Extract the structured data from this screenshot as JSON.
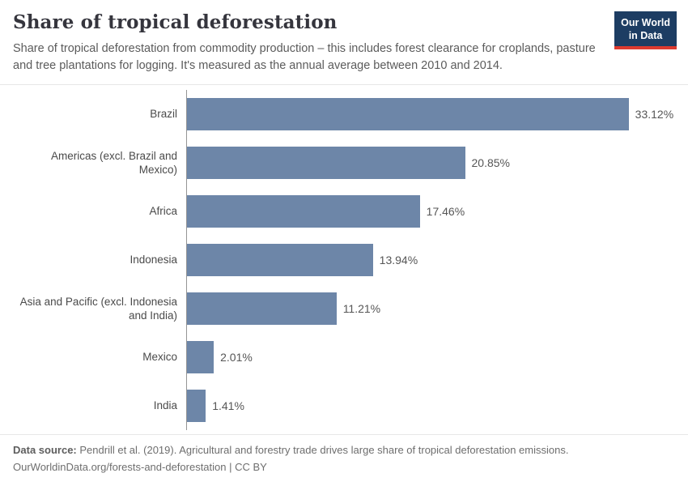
{
  "header": {
    "title": "Share of tropical deforestation",
    "subtitle": "Share of tropical deforestation from commodity production – this includes forest clearance for croplands, pasture and tree plantations for logging. It's measured as the annual average between 2010 and 2014.",
    "logo": {
      "line1": "Our World",
      "line2": "in Data",
      "bg_color": "#1d3d63",
      "accent_color": "#dc3a2f"
    }
  },
  "chart_data": {
    "type": "bar",
    "orientation": "horizontal",
    "title": "Share of tropical deforestation",
    "categories": [
      "Brazil",
      "Americas (excl. Brazil and Mexico)",
      "Africa",
      "Indonesia",
      "Asia and Pacific (excl. Indonesia and India)",
      "Mexico",
      "India"
    ],
    "values": [
      33.12,
      20.85,
      17.46,
      13.94,
      11.21,
      2.01,
      1.41
    ],
    "value_labels": [
      "33.12%",
      "20.85%",
      "17.46%",
      "13.94%",
      "11.21%",
      "2.01%",
      "1.41%"
    ],
    "xlim": [
      0,
      36.6
    ],
    "unit": "%",
    "bar_color": "#6d86a8",
    "grid": false,
    "legend": "none"
  },
  "footer": {
    "source_label": "Data source:",
    "source_text": "Pendrill et al. (2019). Agricultural and forestry trade drives large share of tropical deforestation emissions.",
    "link_line": "OurWorldinData.org/forests-and-deforestation | CC BY"
  }
}
